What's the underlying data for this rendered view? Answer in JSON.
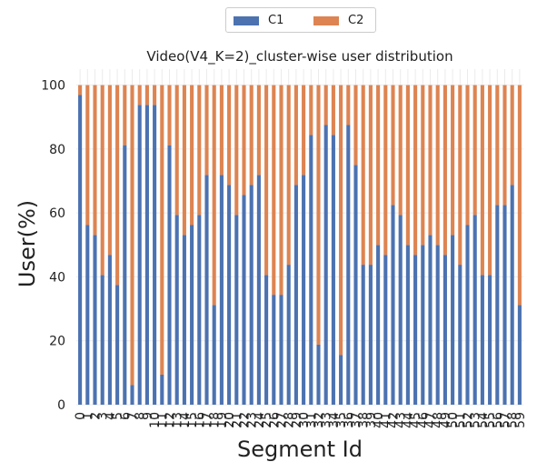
{
  "chart_data": {
    "type": "bar",
    "stacked": true,
    "title": "Video(V4_K=2)_cluster-wise user distribution",
    "xlabel": "Segment Id",
    "ylabel": "User(%)",
    "ylim": [
      0,
      105
    ],
    "yticks": [
      0,
      20,
      40,
      60,
      80,
      100
    ],
    "grid": true,
    "legend_position": "top-center",
    "categories": [
      "0",
      "1",
      "2",
      "3",
      "4",
      "5",
      "6",
      "7",
      "8",
      "9",
      "10",
      "11",
      "12",
      "13",
      "14",
      "15",
      "16",
      "17",
      "18",
      "19",
      "20",
      "21",
      "22",
      "23",
      "24",
      "25",
      "26",
      "27",
      "28",
      "29",
      "30",
      "31",
      "32",
      "33",
      "34",
      "35",
      "36",
      "37",
      "38",
      "39",
      "40",
      "41",
      "42",
      "43",
      "44",
      "45",
      "46",
      "47",
      "48",
      "49",
      "50",
      "51",
      "52",
      "53",
      "54",
      "55",
      "56",
      "57",
      "58",
      "59"
    ],
    "series": [
      {
        "name": "C1",
        "color": "#4c72b0",
        "values": [
          96.9,
          56.2,
          53.1,
          40.6,
          46.9,
          37.5,
          81.2,
          6.2,
          93.8,
          93.8,
          93.8,
          9.4,
          81.2,
          59.4,
          53.1,
          56.2,
          59.4,
          71.9,
          31.2,
          71.9,
          68.8,
          59.4,
          65.6,
          68.8,
          71.9,
          40.6,
          34.4,
          34.4,
          43.8,
          68.8,
          71.9,
          84.4,
          18.8,
          87.5,
          84.4,
          15.6,
          87.5,
          75.0,
          43.8,
          43.8,
          50.0,
          46.9,
          62.5,
          59.4,
          50.0,
          46.9,
          50.0,
          53.1,
          50.0,
          46.9,
          53.1,
          43.8,
          56.2,
          59.4,
          40.6,
          40.6,
          62.5,
          62.5,
          68.8,
          31.2
        ]
      },
      {
        "name": "C2",
        "color": "#dd8452",
        "values": [
          3.1,
          43.8,
          46.9,
          59.4,
          53.1,
          62.5,
          18.8,
          93.8,
          6.2,
          6.2,
          6.2,
          90.6,
          18.8,
          40.6,
          46.9,
          43.8,
          40.6,
          28.1,
          68.8,
          28.1,
          31.2,
          40.6,
          34.4,
          31.2,
          28.1,
          59.4,
          65.6,
          65.6,
          56.2,
          31.2,
          28.1,
          15.6,
          81.2,
          12.5,
          15.6,
          84.4,
          12.5,
          25.0,
          56.2,
          56.2,
          50.0,
          53.1,
          37.5,
          40.6,
          50.0,
          53.1,
          50.0,
          46.9,
          50.0,
          53.1,
          46.9,
          56.2,
          43.8,
          40.6,
          59.4,
          59.4,
          37.5,
          37.5,
          31.2,
          68.8
        ]
      }
    ]
  }
}
